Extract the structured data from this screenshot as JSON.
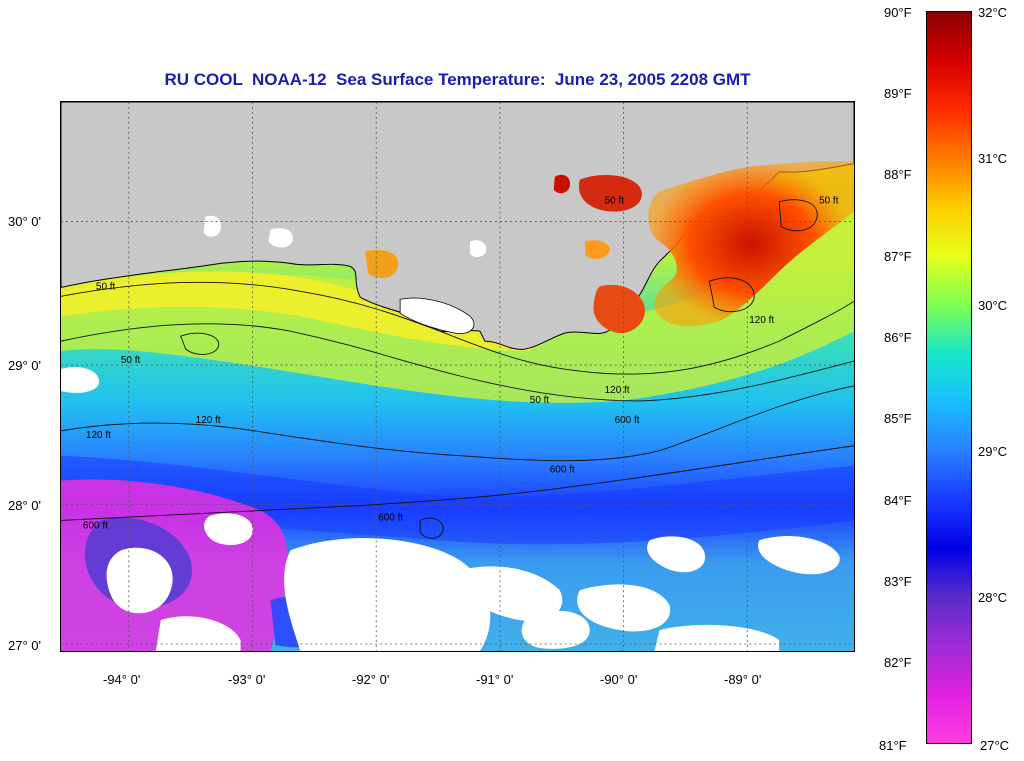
{
  "title": "RU COOL  NOAA-12  Sea Surface Temperature:  June 23, 2005 2208 GMT",
  "map": {
    "lat_labels": [
      "30° 0'",
      "29° 0'",
      "28° 0'",
      "27° 0'"
    ],
    "lon_labels": [
      "-94° 0'",
      "-93° 0'",
      "-92° 0'",
      "-91° 0'",
      "-90° 0'",
      "-89° 0'"
    ],
    "contour_labels": [
      "50 ft",
      "50 ft",
      "50 ft",
      "50 ft",
      "50 ft",
      "120 ft",
      "120 ft",
      "120 ft",
      "120 ft",
      "600 ft",
      "600 ft",
      "600 ft",
      "600 ft"
    ],
    "land_color": "#c8c8c8",
    "cloud_color": "#ffffff"
  },
  "colorbar": {
    "fahrenheit_labels": [
      "90°F",
      "89°F",
      "88°F",
      "87°F",
      "86°F",
      "85°F",
      "84°F",
      "83°F",
      "82°F",
      "81°F"
    ],
    "celsius_labels": [
      "32°C",
      "31°C",
      "30°C",
      "29°C",
      "28°C",
      "27°C"
    ],
    "colors_top_to_bottom": [
      "#8b0000",
      "#d40000",
      "#ff2a00",
      "#ff7a00",
      "#ffcc00",
      "#e6ff1a",
      "#80ff50",
      "#19e6c8",
      "#19bfff",
      "#2a7fff",
      "#1a3cff",
      "#0000e6",
      "#5a2cc8",
      "#a02cd6",
      "#e020e0",
      "#ff3ce0"
    ]
  }
}
